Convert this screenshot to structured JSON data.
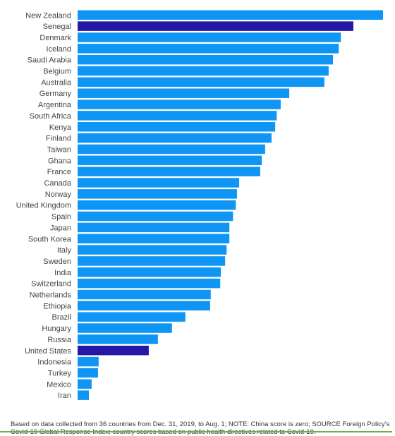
{
  "chart_data": {
    "type": "bar",
    "orientation": "horizontal",
    "categories": [
      "New Zealand",
      "Senegal",
      "Denmark",
      "Iceland",
      "Saudi Arabia",
      "Belgium",
      "Australia",
      "Germany",
      "Argentina",
      "South Africa",
      "Kenya",
      "Finland",
      "Taiwan",
      "Ghana",
      "France",
      "Canada",
      "Norway",
      "United Kingdom",
      "Spain",
      "Japan",
      "South Korea",
      "Italy",
      "Sweden",
      "India",
      "Switzerland",
      "Netherlands",
      "Ethiopia",
      "Brazil",
      "Hungary",
      "Russia",
      "United States",
      "Indonesia",
      "Turkey",
      "Mexico",
      "Iran"
    ],
    "values": [
      100,
      90.3,
      86.2,
      85.5,
      83.6,
      82.2,
      80.8,
      69.3,
      66.5,
      65.2,
      64.7,
      63.5,
      61.4,
      60.3,
      59.8,
      52.9,
      52.2,
      51.8,
      50.9,
      49.7,
      49.7,
      48.8,
      48.3,
      46.9,
      46.7,
      43.6,
      43.4,
      35.3,
      30.9,
      26.3,
      23.3,
      6.9,
      6.7,
      4.6,
      3.7
    ],
    "highlighted": [
      "Senegal",
      "United States"
    ],
    "xlim": [
      0,
      100
    ],
    "colors": {
      "default": "#0f96f5",
      "highlight": "#2518a6"
    },
    "grid": false,
    "legend": "none"
  },
  "footnote": "Based on data collected from 36 countries from Dec. 31, 2019, to Aug. 1; NOTE: China score is zero; SOURCE Foreign Policy's Covid-19 Global Response Index; country scores based on public health directives related to Covid-19."
}
